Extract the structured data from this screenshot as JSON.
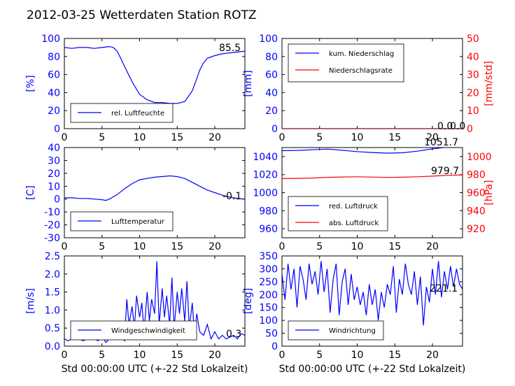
{
  "title": "2012-03-25 Wetterdaten Station ROTZ",
  "colors": {
    "left_axis": "#0000ff",
    "right_axis": "#ff0000",
    "line1": "#0000ff",
    "line2": "#ff0000",
    "light_line": "#8f8fff"
  },
  "chart_data": [
    {
      "type": "line",
      "ylabel": "[%]",
      "xlim": [
        0,
        24
      ],
      "ylim": [
        0,
        100
      ],
      "xticks": [
        0,
        5,
        10,
        15,
        20
      ],
      "yticks": [
        0,
        20,
        40,
        60,
        80,
        100
      ],
      "value_label": "85.5",
      "legend": {
        "placement": "lower-left",
        "entries": [
          "rel. Luftfeuchte"
        ]
      },
      "series": [
        {
          "name": "rel. Luftfeuchte",
          "color": "#0000ff",
          "x": [
            0,
            1,
            2,
            3,
            4,
            5,
            6,
            6.5,
            7,
            7.5,
            8,
            9,
            10,
            11,
            12,
            13,
            14,
            15,
            16,
            17,
            17.5,
            18,
            18.5,
            19,
            20,
            21,
            22,
            23,
            24
          ],
          "y": [
            90,
            89,
            90,
            90,
            89,
            90,
            91,
            90,
            86,
            78,
            69,
            52,
            38,
            32,
            29,
            29,
            28,
            28,
            30,
            42,
            53,
            65,
            73,
            78,
            81,
            83,
            84,
            85,
            86
          ]
        }
      ]
    },
    {
      "type": "line",
      "ylabel": "[mm]",
      "ylabel_right": "[mm/std]",
      "xlim": [
        0,
        24
      ],
      "ylim": [
        0,
        100
      ],
      "ylim_right": [
        0,
        50
      ],
      "xticks": [
        0,
        5,
        10,
        15,
        20
      ],
      "yticks": [
        0,
        20,
        40,
        60,
        80,
        100
      ],
      "yticks_right": [
        0,
        10,
        20,
        30,
        40,
        50
      ],
      "value_label": "0.0",
      "value_label_2": "0.0",
      "legend": {
        "placement": "upper-left",
        "entries": [
          "kum. Niederschlag",
          "Niederschlagsrate"
        ]
      },
      "series": [
        {
          "name": "kum. Niederschlag",
          "color": "#0000ff",
          "axis": "left",
          "x": [
            0,
            24
          ],
          "y": [
            0,
            0
          ]
        },
        {
          "name": "Niederschlagsrate",
          "color": "#ff0000",
          "axis": "right",
          "x": [
            0,
            24
          ],
          "y": [
            0,
            0
          ]
        }
      ]
    },
    {
      "type": "line",
      "ylabel": "[C]",
      "xlim": [
        0,
        24
      ],
      "ylim": [
        -30,
        40
      ],
      "xticks": [
        0,
        5,
        10,
        15,
        20
      ],
      "yticks": [
        -30,
        -20,
        -10,
        0,
        10,
        20,
        30,
        40
      ],
      "value_label": "-0.1",
      "legend": {
        "placement": "lower-left",
        "entries": [
          "Lufttemperatur"
        ]
      },
      "series": [
        {
          "name": "Lufttemperatur",
          "color": "#0000ff",
          "x": [
            0,
            1,
            2,
            3,
            4,
            5,
            5.5,
            6,
            7,
            8,
            9,
            10,
            11,
            12,
            13,
            14,
            15,
            16,
            17,
            18,
            19,
            20,
            21,
            22,
            23,
            24
          ],
          "y": [
            1,
            1,
            0.5,
            0.5,
            0,
            -0.5,
            -1,
            0,
            3.5,
            8,
            12,
            15,
            16,
            17,
            17.5,
            18,
            17.5,
            16,
            13,
            10,
            7,
            5,
            3,
            1.5,
            0.5,
            0
          ]
        }
      ]
    },
    {
      "type": "line",
      "ylabel_right": "[hPa]",
      "xlim": [
        0,
        24
      ],
      "ylim": [
        950,
        1050
      ],
      "ylim_right": [
        910,
        1010
      ],
      "xticks": [
        0,
        5,
        10,
        15,
        20
      ],
      "yticks": [
        960,
        980,
        1000,
        1020,
        1040
      ],
      "yticks_right": [
        920,
        940,
        960,
        980,
        1000
      ],
      "value_label": "1051.7",
      "value_label_2": "979.7",
      "legend": {
        "placement": "lower-left",
        "entries": [
          "red. Luftdruck",
          "abs. Luftdruck"
        ]
      },
      "series": [
        {
          "name": "red. Luftdruck",
          "color": "#0000ff",
          "axis": "left",
          "x": [
            0,
            2,
            4,
            6,
            8,
            10,
            12,
            14,
            16,
            18,
            20,
            22,
            24
          ],
          "y": [
            1046.5,
            1046.8,
            1047.5,
            1048.3,
            1047,
            1045.5,
            1044.5,
            1043.8,
            1044.2,
            1046,
            1048.5,
            1050.5,
            1051.7
          ]
        },
        {
          "name": "abs. Luftdruck",
          "color": "#ff0000",
          "axis": "right",
          "x": [
            0,
            2,
            4,
            6,
            8,
            10,
            12,
            14,
            16,
            18,
            20,
            22,
            24
          ],
          "y": [
            975.6,
            975.8,
            976.2,
            977,
            977.4,
            977.6,
            977.3,
            976.9,
            977.1,
            977.6,
            978.3,
            979.2,
            979.7
          ]
        }
      ]
    },
    {
      "type": "line",
      "ylabel": "[m/s]",
      "xlabel": "Std 00:00:00 UTC (+-22 Std Lokalzeit)",
      "xlim": [
        0,
        24
      ],
      "ylim": [
        0,
        2.5
      ],
      "xticks": [
        0,
        5,
        10,
        15,
        20
      ],
      "yticks": [
        0.0,
        0.5,
        1.0,
        1.5,
        2.0,
        2.5
      ],
      "value_label": "0.3",
      "legend": {
        "placement": "lower-left",
        "entries": [
          "Windgeschwindigkeit"
        ]
      },
      "series": [
        {
          "name": "Windgeschwindigkeit",
          "color": "#0000ff",
          "x": [
            0,
            0.5,
            1,
            1.5,
            2,
            2.5,
            3,
            3.5,
            4,
            4.5,
            5,
            5.5,
            6,
            6.5,
            7,
            7.5,
            8,
            8.3,
            8.6,
            9,
            9.3,
            9.6,
            10,
            10.3,
            10.6,
            11,
            11.3,
            11.6,
            12,
            12.3,
            12.6,
            13,
            13.3,
            13.6,
            14,
            14.3,
            14.6,
            15,
            15.3,
            15.6,
            16,
            16.3,
            16.6,
            17,
            17.3,
            17.6,
            18,
            18.5,
            19,
            19.5,
            20,
            20.5,
            21,
            21.5,
            22,
            22.5,
            23,
            23.5,
            24
          ],
          "y": [
            0.2,
            0.15,
            0.2,
            0.25,
            0.2,
            0.15,
            0.2,
            0.25,
            0.2,
            0.15,
            0.3,
            0.1,
            0.2,
            0.25,
            0.2,
            0.3,
            0.15,
            1.3,
            0.6,
            1.1,
            0.5,
            1.4,
            0.8,
            1.2,
            0.4,
            1.5,
            0.7,
            1.3,
            0.9,
            2.35,
            0.6,
            1.6,
            0.8,
            1.4,
            0.6,
            1.9,
            0.5,
            1.5,
            0.9,
            1.6,
            0.7,
            1.8,
            0.5,
            1.2,
            0.3,
            0.9,
            0.4,
            0.3,
            0.6,
            0.2,
            0.4,
            0.2,
            0.3,
            0.2,
            0.25,
            0.3,
            0.2,
            0.35,
            0.3
          ]
        }
      ]
    },
    {
      "type": "line",
      "ylabel": "[deg]",
      "xlabel": "Std 00:00:00 UTC (+-22 Std Lokalzeit)",
      "xlim": [
        0,
        24
      ],
      "ylim": [
        0,
        350
      ],
      "xticks": [
        0,
        5,
        10,
        15,
        20
      ],
      "yticks": [
        0,
        50,
        100,
        150,
        200,
        250,
        300,
        350
      ],
      "value_label": "221.1",
      "legend": {
        "placement": "lower-left",
        "entries": [
          "Windrichtung"
        ]
      },
      "series": [
        {
          "name": "Windrichtung",
          "color": "#0000ff",
          "x": [
            0,
            0.4,
            0.8,
            1.2,
            1.6,
            2,
            2.4,
            2.8,
            3.2,
            3.6,
            4,
            4.4,
            4.8,
            5.2,
            5.6,
            6,
            6.4,
            6.8,
            7.2,
            7.6,
            8,
            8.4,
            8.8,
            9.2,
            9.6,
            10,
            10.4,
            10.8,
            11.2,
            11.6,
            12,
            12.4,
            12.8,
            13.2,
            13.6,
            14,
            14.4,
            14.8,
            15.2,
            15.6,
            16,
            16.4,
            16.8,
            17.2,
            17.6,
            18,
            18.4,
            18.8,
            19.2,
            19.6,
            20,
            20.4,
            20.8,
            21.2,
            21.6,
            22,
            22.4,
            22.8,
            23.2,
            23.6,
            24
          ],
          "y": [
            280,
            180,
            320,
            220,
            300,
            150,
            310,
            260,
            180,
            320,
            240,
            290,
            200,
            330,
            210,
            300,
            130,
            260,
            320,
            120,
            250,
            300,
            160,
            280,
            180,
            230,
            160,
            210,
            120,
            240,
            160,
            220,
            100,
            210,
            150,
            240,
            200,
            310,
            130,
            260,
            200,
            320,
            240,
            200,
            290,
            160,
            270,
            80,
            230,
            170,
            300,
            200,
            330,
            190,
            290,
            220,
            310,
            230,
            300,
            240,
            221
          ]
        }
      ]
    }
  ]
}
